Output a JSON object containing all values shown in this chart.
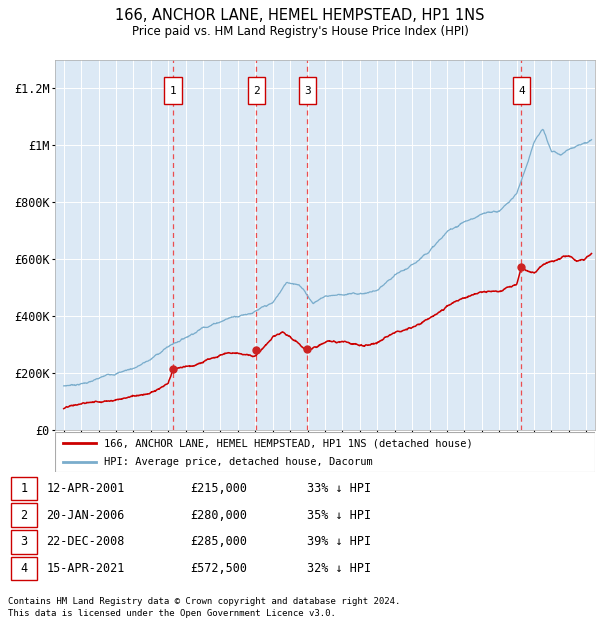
{
  "title": "166, ANCHOR LANE, HEMEL HEMPSTEAD, HP1 1NS",
  "subtitle": "Price paid vs. HM Land Registry's House Price Index (HPI)",
  "bg_color": "#dce9f5",
  "red_line_color": "#cc0000",
  "blue_line_color": "#7aadcc",
  "grid_color": "#ffffff",
  "vline_color": "#ee3333",
  "transactions": [
    {
      "label": "1",
      "date_num": 2001.28,
      "price": 215000,
      "pct": "33%",
      "date_str": "12-APR-2001"
    },
    {
      "label": "2",
      "date_num": 2006.05,
      "price": 280000,
      "pct": "35%",
      "date_str": "20-JAN-2006"
    },
    {
      "label": "3",
      "date_num": 2008.98,
      "price": 285000,
      "pct": "39%",
      "date_str": "22-DEC-2008"
    },
    {
      "label": "4",
      "date_num": 2021.28,
      "price": 572500,
      "pct": "32%",
      "date_str": "15-APR-2021"
    }
  ],
  "ylim": [
    0,
    1300000
  ],
  "xlim": [
    1994.5,
    2025.5
  ],
  "yticks": [
    0,
    200000,
    400000,
    600000,
    800000,
    1000000,
    1200000
  ],
  "ytick_labels": [
    "£0",
    "£200K",
    "£400K",
    "£600K",
    "£800K",
    "£1M",
    "£1.2M"
  ],
  "legend_line1": "166, ANCHOR LANE, HEMEL HEMPSTEAD, HP1 1NS (detached house)",
  "legend_line2": "HPI: Average price, detached house, Dacorum",
  "footer1": "Contains HM Land Registry data © Crown copyright and database right 2024.",
  "footer2": "This data is licensed under the Open Government Licence v3.0."
}
